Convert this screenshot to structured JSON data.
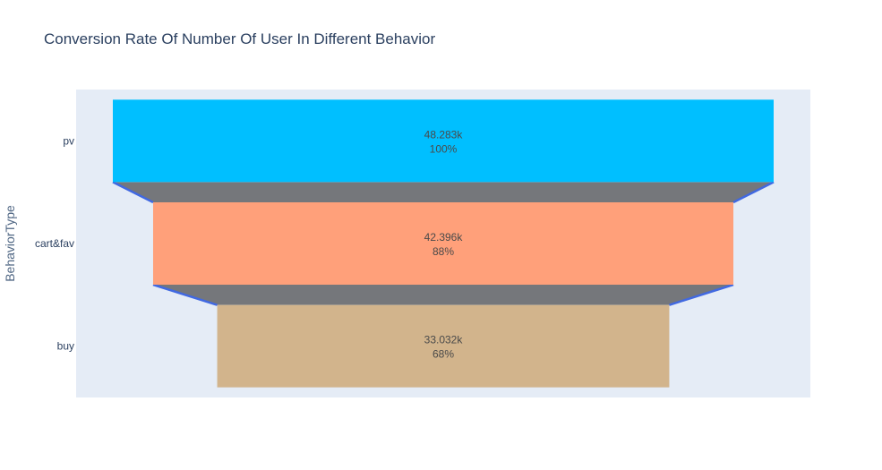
{
  "chart_data": {
    "type": "funnel",
    "title": "Conversion Rate Of Number Of User In Different Behavior",
    "ylabel": "BehaviorType",
    "categories": [
      "pv",
      "cart&fav",
      "buy"
    ],
    "values": [
      48283,
      42396,
      33032
    ],
    "value_labels": [
      "48.283k",
      "42.396k",
      "33.032k"
    ],
    "percent_labels": [
      "100%",
      "88%",
      "68%"
    ],
    "colors": [
      "#00bfff",
      "#ffa07a",
      "#d2b48c"
    ],
    "connector_color": "#75777b",
    "connector_line_color": "#4169e1",
    "plot_bg": "#e5ecf6"
  }
}
